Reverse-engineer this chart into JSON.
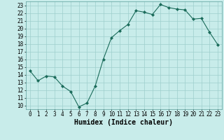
{
  "x": [
    0,
    1,
    2,
    3,
    4,
    5,
    6,
    7,
    8,
    9,
    10,
    11,
    12,
    13,
    14,
    15,
    16,
    17,
    18,
    19,
    20,
    21,
    22,
    23
  ],
  "y": [
    14.5,
    13.2,
    13.8,
    13.7,
    12.5,
    11.8,
    9.8,
    10.3,
    12.5,
    16.0,
    18.8,
    19.7,
    20.5,
    22.3,
    22.1,
    21.8,
    23.1,
    22.7,
    22.5,
    22.4,
    21.2,
    21.3,
    19.5,
    17.9
  ],
  "line_color": "#1a6b5a",
  "marker": "D",
  "marker_size": 2.0,
  "bg_color": "#c8ecea",
  "grid_color": "#9ecfcc",
  "xlabel": "Humidex (Indice chaleur)",
  "xlim": [
    -0.5,
    23.5
  ],
  "ylim": [
    9.5,
    23.5
  ],
  "yticks": [
    10,
    11,
    12,
    13,
    14,
    15,
    16,
    17,
    18,
    19,
    20,
    21,
    22,
    23
  ],
  "xticks": [
    0,
    1,
    2,
    3,
    4,
    5,
    6,
    7,
    8,
    9,
    10,
    11,
    12,
    13,
    14,
    15,
    16,
    17,
    18,
    19,
    20,
    21,
    22,
    23
  ],
  "tick_fontsize": 5.5,
  "label_fontsize": 7.0
}
